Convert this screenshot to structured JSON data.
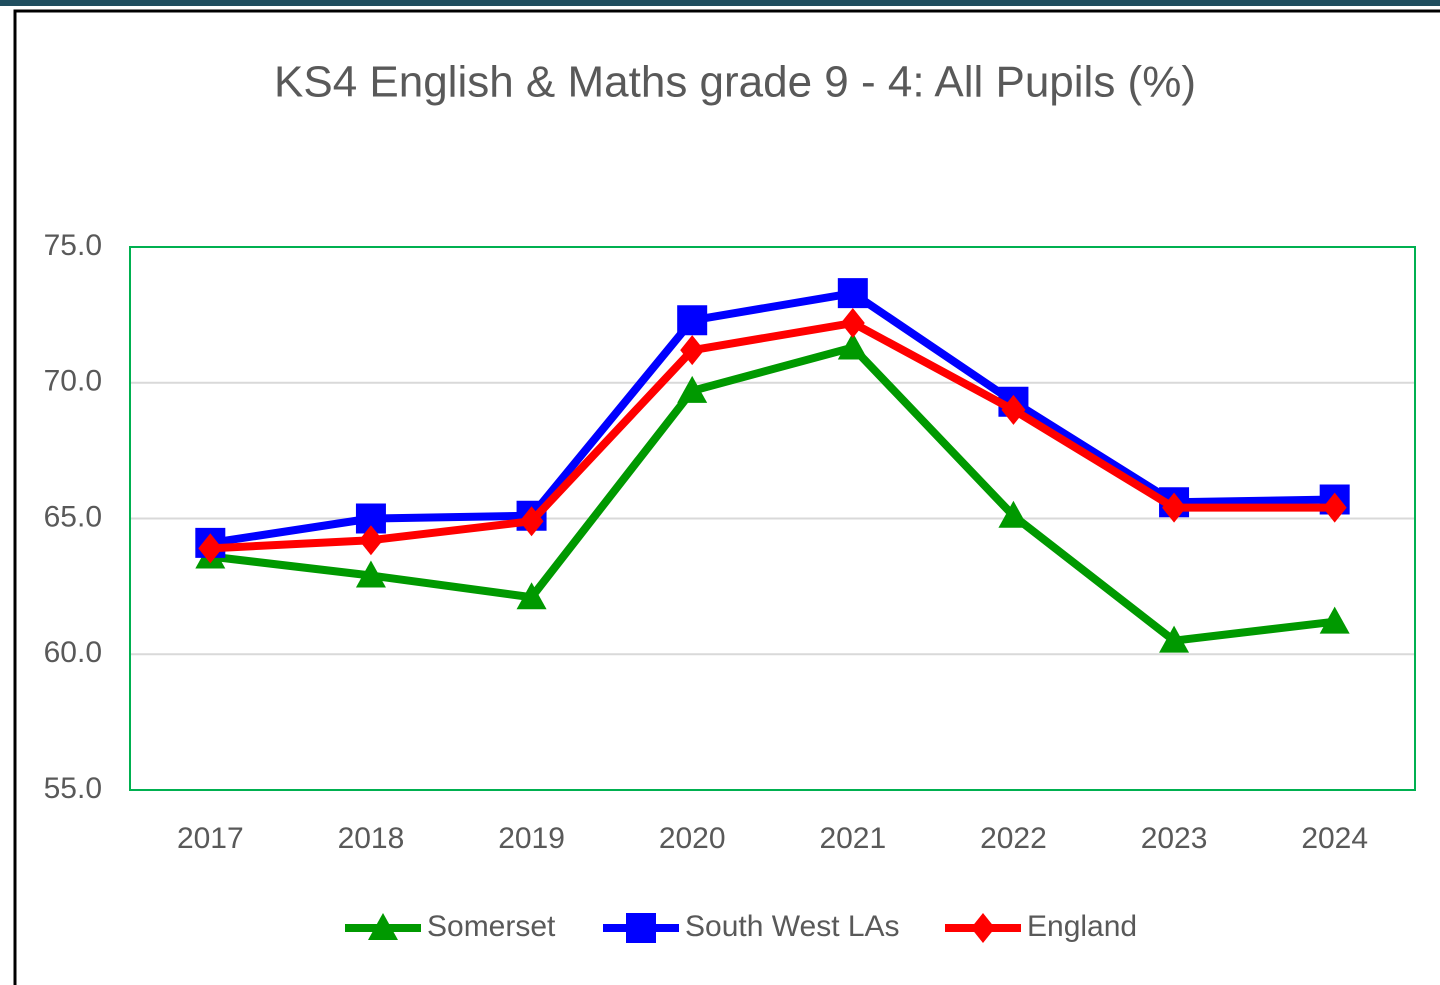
{
  "chart_data": {
    "type": "line",
    "title": "KS4 English & Maths grade 9 - 4: All Pupils (%)",
    "categories": [
      "2017",
      "2018",
      "2019",
      "2020",
      "2021",
      "2022",
      "2023",
      "2024"
    ],
    "series": [
      {
        "name": "Somerset",
        "color": "#009900",
        "marker": "triangle",
        "values": [
          63.6,
          62.9,
          62.1,
          69.7,
          71.3,
          65.1,
          60.5,
          61.2
        ]
      },
      {
        "name": "South West LAs",
        "color": "#0000ff",
        "marker": "square",
        "values": [
          64.1,
          65.0,
          65.1,
          72.3,
          73.3,
          69.3,
          65.6,
          65.7
        ]
      },
      {
        "name": "England",
        "color": "#ff0000",
        "marker": "diamond",
        "values": [
          63.9,
          64.2,
          64.9,
          71.2,
          72.2,
          69.0,
          65.4,
          65.4
        ]
      }
    ],
    "ylim": [
      55,
      75
    ],
    "yticks": [
      {
        "value": 55,
        "label": "55.0"
      },
      {
        "value": 60,
        "label": "60.0"
      },
      {
        "value": 65,
        "label": "65.0"
      },
      {
        "value": 70,
        "label": "70.0"
      },
      {
        "value": 75,
        "label": "75.0"
      }
    ],
    "grid": true,
    "legend": "bottom"
  }
}
